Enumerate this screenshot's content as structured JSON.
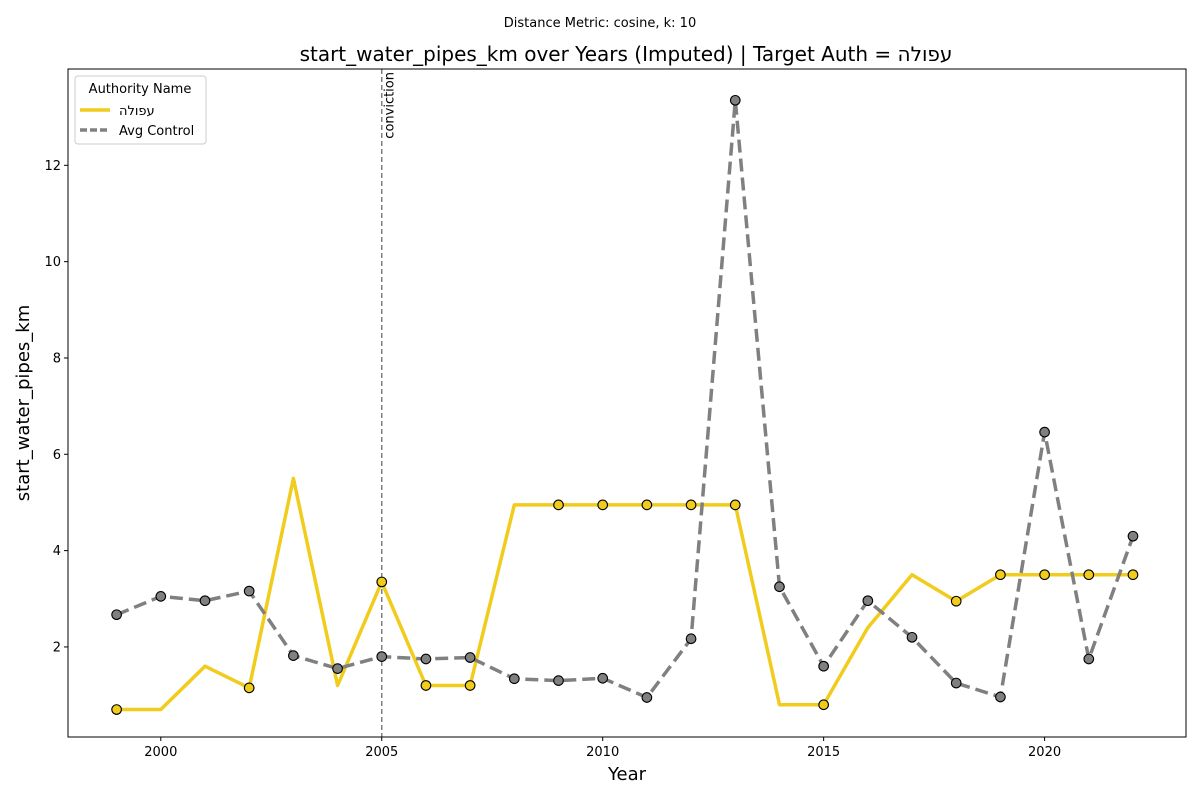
{
  "chart_data": {
    "type": "line",
    "suptitle": "Distance Metric: cosine, k: 10",
    "title": "start_water_pipes_km over Years (Imputed) | Target Auth = עפולה",
    "xlabel": "Year",
    "ylabel": "start_water_pipes_km",
    "xlim": [
      1997.9,
      2023.2
    ],
    "ylim": [
      0.13,
      14.0
    ],
    "xticks": [
      2000,
      2005,
      2010,
      2015,
      2020
    ],
    "yticks": [
      2,
      4,
      6,
      8,
      10,
      12
    ],
    "grid": false,
    "legend": {
      "title": "Authority Name",
      "placement": "top-left"
    },
    "annotation": {
      "x": 2005,
      "text": "conviction",
      "color": "#808080"
    },
    "series": [
      {
        "name": "עפולה",
        "color": "#f1cc1c",
        "line_style": "solid",
        "x": [
          1999,
          2000,
          2001,
          2002,
          2003,
          2004,
          2005,
          2006,
          2007,
          2008,
          2009,
          2010,
          2011,
          2012,
          2013,
          2014,
          2015,
          2016,
          2017,
          2018,
          2019,
          2020,
          2021,
          2022
        ],
        "values": [
          0.7,
          0.7,
          1.6,
          1.15,
          5.5,
          1.2,
          3.35,
          1.2,
          1.2,
          4.95,
          4.95,
          4.95,
          4.95,
          4.95,
          4.95,
          0.8,
          0.8,
          2.4,
          3.5,
          2.95,
          3.5,
          3.5,
          3.5,
          3.5
        ],
        "marker_x": [
          1999,
          2002,
          2005,
          2006,
          2007,
          2009,
          2010,
          2011,
          2012,
          2013,
          2015,
          2018,
          2019,
          2020,
          2021,
          2022
        ],
        "marker_fill": "#f1cc1c"
      },
      {
        "name": "Avg Control",
        "color": "#808080",
        "line_style": "dashed",
        "x": [
          1999,
          2000,
          2001,
          2002,
          2003,
          2004,
          2005,
          2006,
          2007,
          2008,
          2009,
          2010,
          2011,
          2012,
          2013,
          2014,
          2015,
          2016,
          2017,
          2018,
          2019,
          2020,
          2021,
          2022
        ],
        "values": [
          2.67,
          3.05,
          2.96,
          3.16,
          1.82,
          1.55,
          1.8,
          1.75,
          1.78,
          1.34,
          1.3,
          1.35,
          0.95,
          2.17,
          13.35,
          3.25,
          1.6,
          2.96,
          2.2,
          1.25,
          0.96,
          6.46,
          1.75,
          4.3
        ],
        "marker_x": [
          1999,
          2000,
          2001,
          2002,
          2003,
          2004,
          2005,
          2006,
          2007,
          2008,
          2009,
          2010,
          2011,
          2012,
          2013,
          2014,
          2015,
          2016,
          2017,
          2018,
          2019,
          2020,
          2021,
          2022
        ],
        "marker_fill": "#808080"
      }
    ]
  }
}
